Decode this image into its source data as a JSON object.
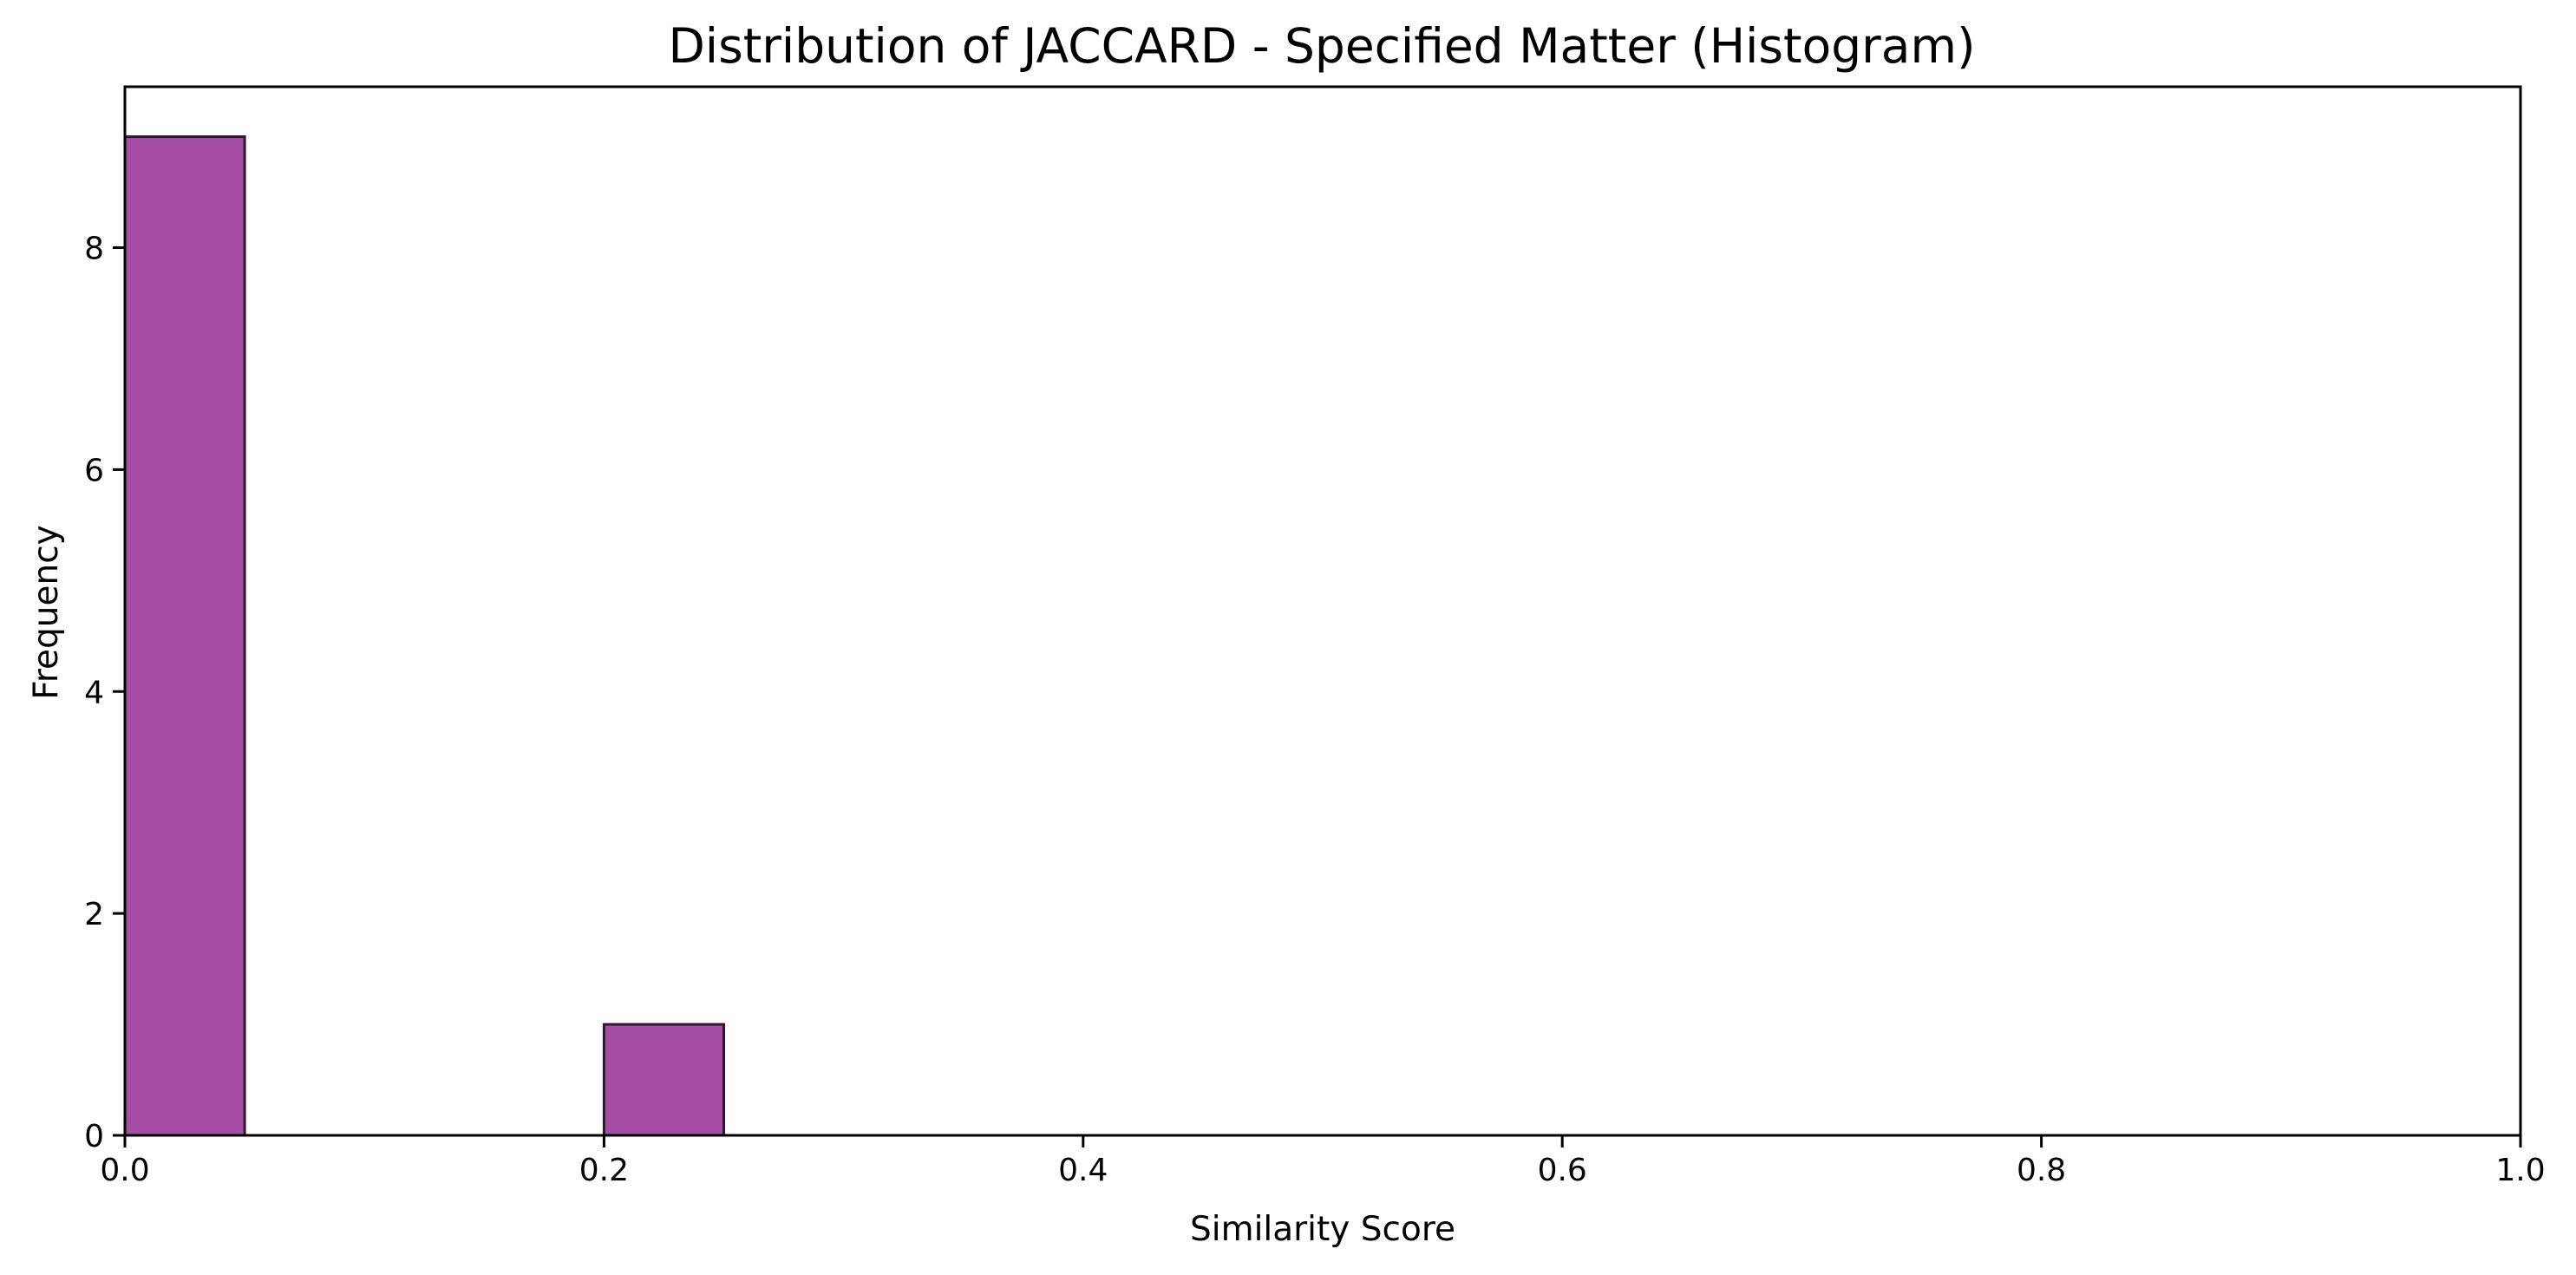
{
  "chart_data": {
    "type": "bar",
    "title": "Distribution of JACCARD - Specified Matter (Histogram)",
    "xlabel": "Similarity Score",
    "ylabel": "Frequency",
    "xlim": [
      0,
      1
    ],
    "ylim": [
      0,
      9.45
    ],
    "xticks": [
      0.0,
      0.2,
      0.4,
      0.6,
      0.8,
      1.0
    ],
    "xtick_labels": [
      "0.0",
      "0.2",
      "0.4",
      "0.6",
      "0.8",
      "1.0"
    ],
    "yticks": [
      0,
      2,
      4,
      6,
      8
    ],
    "ytick_labels": [
      "0",
      "2",
      "4",
      "6",
      "8"
    ],
    "bins": [
      {
        "x0": 0.0,
        "x1": 0.05,
        "count": 9
      },
      {
        "x0": 0.2,
        "x1": 0.25,
        "count": 1
      }
    ],
    "grid": false,
    "colors": {
      "bar_fill": "#9b3a9b",
      "bar_edge": "#2a1a2a"
    }
  }
}
